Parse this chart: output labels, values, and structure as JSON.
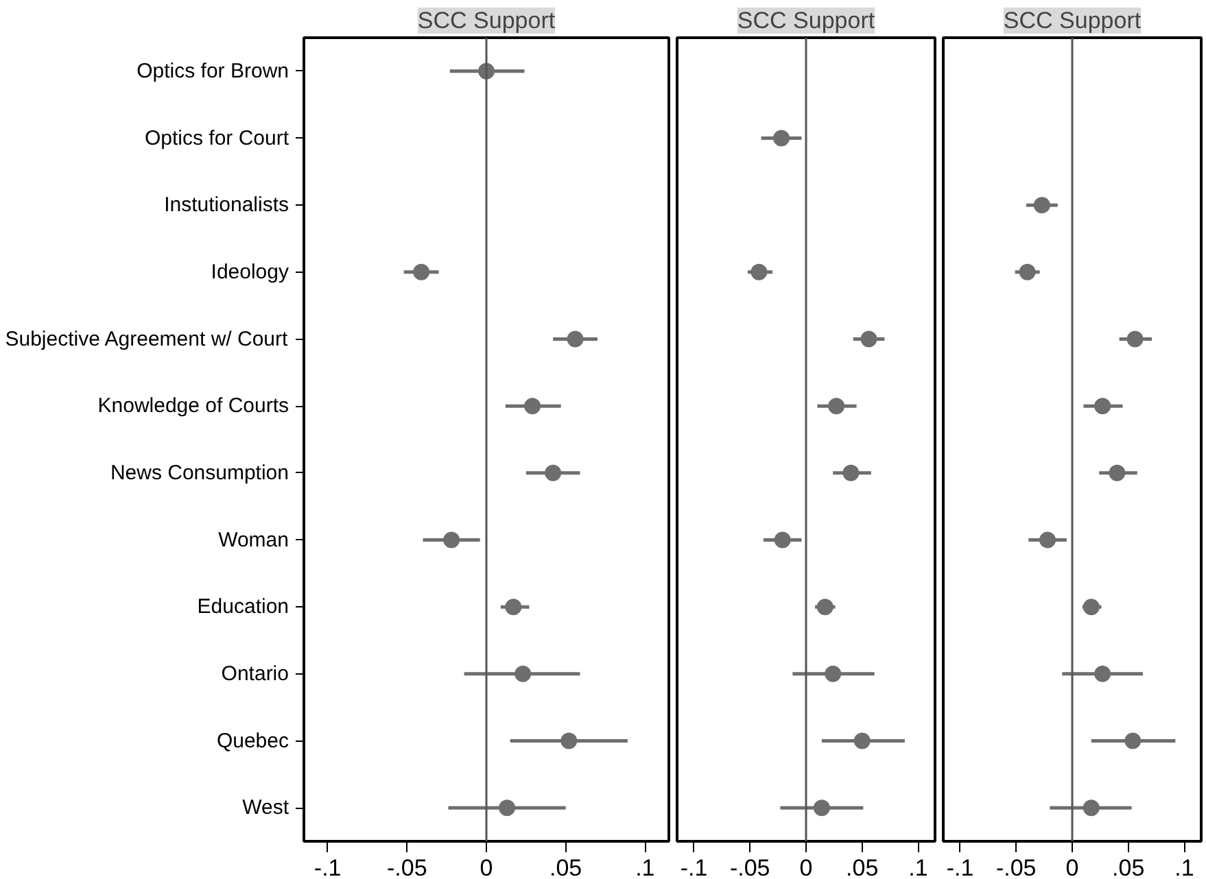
{
  "chart_data": [
    {
      "type": "scatter",
      "title": "SCC Support",
      "orientation": "horizontal",
      "marker": "circle",
      "grid": false,
      "color": "#6e6e6e",
      "categories": [
        "Optics for Brown",
        "Optics for Court",
        "Instutionalists",
        "Ideology",
        "Subjective Agreement w/ Court",
        "Knowledge of Courts",
        "News Consumption",
        "Woman",
        "Education",
        "Ontario",
        "Quebec",
        "West"
      ],
      "values": [
        0.0,
        null,
        null,
        -0.041,
        0.056,
        0.029,
        0.042,
        -0.022,
        0.017,
        0.023,
        0.052,
        0.013
      ],
      "errors": [
        [
          -0.023,
          0.024
        ],
        null,
        null,
        [
          -0.052,
          -0.03
        ],
        [
          0.042,
          0.07
        ],
        [
          0.012,
          0.047
        ],
        [
          0.025,
          0.059
        ],
        [
          -0.04,
          -0.004
        ],
        [
          0.009,
          0.027
        ],
        [
          -0.014,
          0.059
        ],
        [
          0.015,
          0.089
        ],
        [
          -0.024,
          0.05
        ]
      ],
      "xlim": [
        -0.115,
        0.115
      ],
      "xticks": [
        {
          "value": -0.1,
          "label": "-.1"
        },
        {
          "value": -0.05,
          "label": "-.05"
        },
        0,
        {
          "value": 0.05,
          "label": ".05"
        },
        {
          "value": 0.1,
          "label": ".1"
        }
      ],
      "ref_lines": [
        {
          "axis": "x",
          "value": 0,
          "color": "#555555"
        }
      ]
    },
    {
      "type": "scatter",
      "title": "SCC Support",
      "orientation": "horizontal",
      "marker": "circle",
      "grid": false,
      "tick_labels": "x",
      "color": "#6e6e6e",
      "values": [
        null,
        -0.022,
        null,
        -0.042,
        0.056,
        0.027,
        0.04,
        -0.021,
        0.017,
        0.024,
        0.05,
        0.014
      ],
      "errors": [
        null,
        [
          -0.04,
          -0.004
        ],
        null,
        [
          -0.052,
          -0.03
        ],
        [
          0.042,
          0.07
        ],
        [
          0.01,
          0.045
        ],
        [
          0.024,
          0.058
        ],
        [
          -0.038,
          -0.004
        ],
        [
          0.008,
          0.026
        ],
        [
          -0.012,
          0.061
        ],
        [
          0.014,
          0.088
        ],
        [
          -0.023,
          0.051
        ]
      ],
      "xlim": [
        -0.115,
        0.115
      ],
      "xticks": [
        {
          "value": -0.1,
          "label": "-.1"
        },
        {
          "value": -0.05,
          "label": "-.05"
        },
        0,
        {
          "value": 0.05,
          "label": ".05"
        },
        {
          "value": 0.1,
          "label": ".1"
        }
      ],
      "ref_lines": [
        {
          "axis": "x",
          "value": 0,
          "color": "#555555"
        }
      ]
    },
    {
      "type": "scatter",
      "title": "SCC Support",
      "orientation": "horizontal",
      "marker": "circle",
      "grid": false,
      "tick_labels": "x",
      "color": "#6e6e6e",
      "values": [
        null,
        null,
        -0.027,
        -0.04,
        0.056,
        0.027,
        0.04,
        -0.022,
        0.017,
        0.027,
        0.054,
        0.017
      ],
      "errors": [
        null,
        null,
        [
          -0.041,
          -0.013
        ],
        [
          -0.051,
          -0.029
        ],
        [
          0.042,
          0.071
        ],
        [
          0.01,
          0.045
        ],
        [
          0.024,
          0.058
        ],
        [
          -0.039,
          -0.005
        ],
        [
          0.009,
          0.026
        ],
        [
          -0.009,
          0.063
        ],
        [
          0.017,
          0.092
        ],
        [
          -0.02,
          0.053
        ]
      ],
      "xlim": [
        -0.115,
        0.115
      ],
      "xticks": [
        {
          "value": -0.1,
          "label": "-.1"
        },
        {
          "value": -0.05,
          "label": "-.05"
        },
        0,
        {
          "value": 0.05,
          "label": ".05"
        },
        {
          "value": 0.1,
          "label": ".1"
        }
      ],
      "ref_lines": [
        {
          "axis": "x",
          "value": 0,
          "color": "#555555"
        }
      ]
    }
  ]
}
